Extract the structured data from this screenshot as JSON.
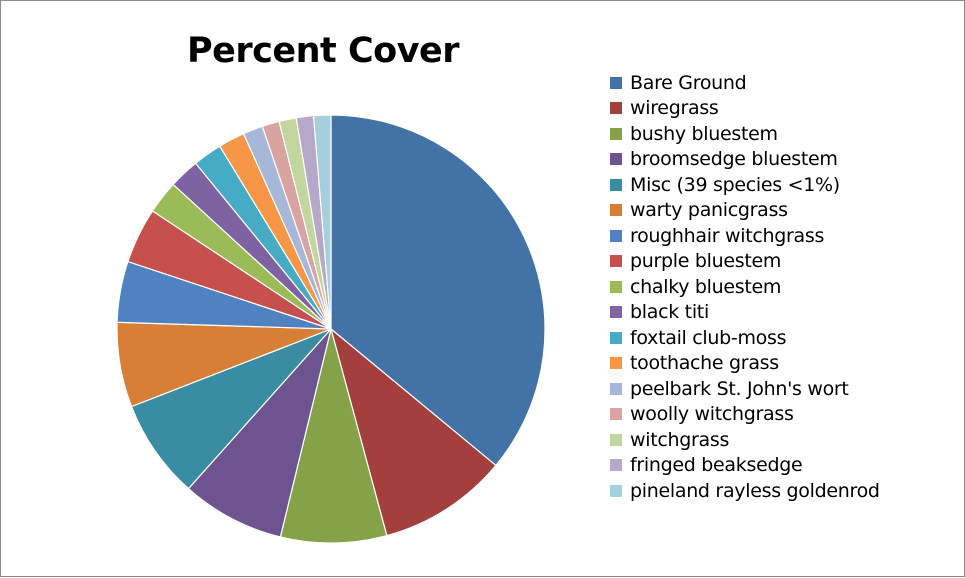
{
  "chart_data": {
    "type": "pie",
    "title": "Percent Cover",
    "legend_position": "right",
    "slices": [
      {
        "label": "Bare Ground",
        "value": 36.0,
        "color": "#4372a7"
      },
      {
        "label": "wiregrass",
        "value": 9.8,
        "color": "#a3403e"
      },
      {
        "label": "bushy bluestem",
        "value": 8.0,
        "color": "#86a249"
      },
      {
        "label": "broomsedge bluestem",
        "value": 7.8,
        "color": "#6d5390"
      },
      {
        "label": "Misc (39 species <1%)",
        "value": 7.5,
        "color": "#3a8ca3"
      },
      {
        "label": "warty panicgrass",
        "value": 6.4,
        "color": "#d77f36"
      },
      {
        "label": "roughhair witchgrass",
        "value": 4.6,
        "color": "#5082c1"
      },
      {
        "label": "purple bluestem",
        "value": 4.2,
        "color": "#c5504e"
      },
      {
        "label": "chalky bluestem",
        "value": 2.5,
        "color": "#9bbb59"
      },
      {
        "label": "black titi",
        "value": 2.3,
        "color": "#7f62a1"
      },
      {
        "label": "foxtail club-moss",
        "value": 2.2,
        "color": "#46abc5"
      },
      {
        "label": "toothache grass",
        "value": 2.0,
        "color": "#f79646"
      },
      {
        "label": "peelbark St. John's wort",
        "value": 1.5,
        "color": "#a6b7d8"
      },
      {
        "label": "woolly witchgrass",
        "value": 1.3,
        "color": "#d9a3a2"
      },
      {
        "label": "witchgrass",
        "value": 1.3,
        "color": "#c3d6a0"
      },
      {
        "label": "fringed beaksedge",
        "value": 1.3,
        "color": "#b6a8c9"
      },
      {
        "label": "pineland rayless goldenrod",
        "value": 1.3,
        "color": "#a5cfdb"
      }
    ]
  }
}
